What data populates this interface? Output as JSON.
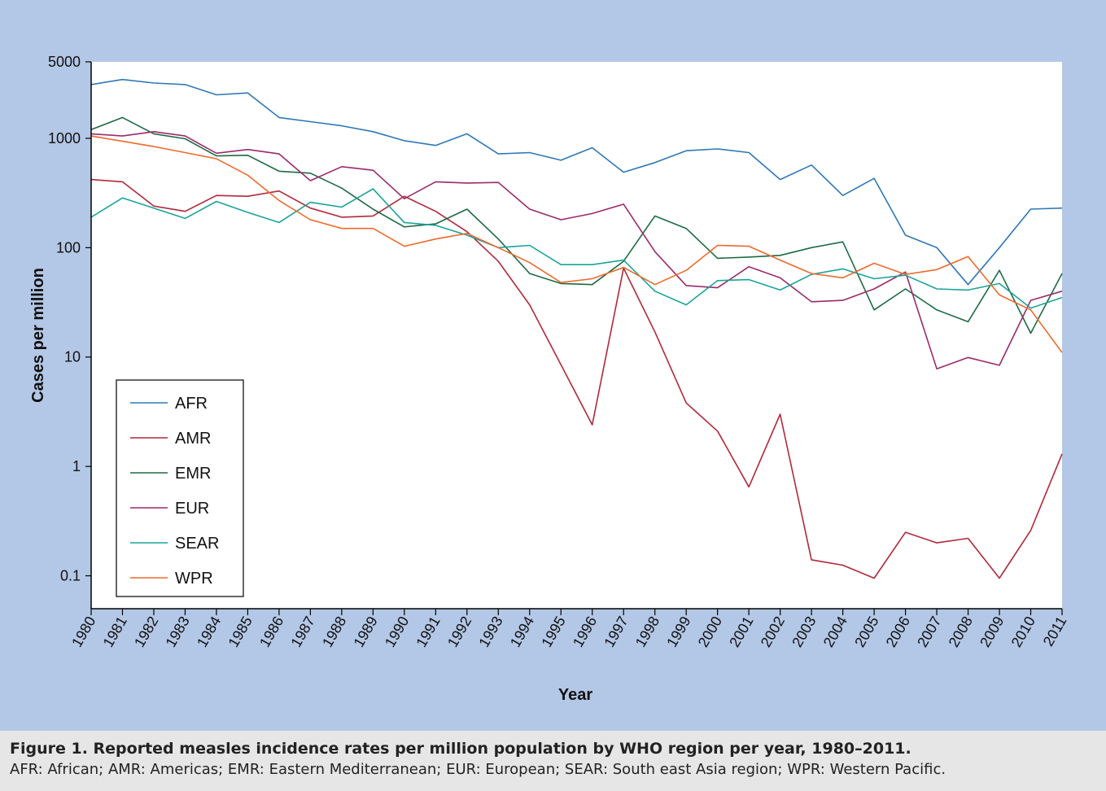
{
  "chart_data": {
    "type": "line",
    "title": "",
    "xlabel": "Year",
    "ylabel": "Cases per million",
    "yscale": "log",
    "ylim": [
      0.05,
      5000
    ],
    "y_ticks": [
      {
        "value": 5000,
        "label": "5000"
      },
      {
        "value": 1000,
        "label": "1000"
      },
      {
        "value": 100,
        "label": "100"
      },
      {
        "value": 10,
        "label": "10"
      },
      {
        "value": 1,
        "label": "1"
      },
      {
        "value": 0.1,
        "label": "0.1"
      }
    ],
    "x": [
      1980,
      1981,
      1982,
      1983,
      1984,
      1985,
      1986,
      1987,
      1988,
      1989,
      1990,
      1991,
      1992,
      1993,
      1994,
      1995,
      1996,
      1997,
      1998,
      1999,
      2000,
      2001,
      2002,
      2003,
      2004,
      2005,
      2006,
      2007,
      2008,
      2009,
      2010,
      2011
    ],
    "grid": false,
    "legend_position": "bottom-left",
    "series": [
      {
        "name": "AFR",
        "color": "#2e78b7",
        "values": [
          3100,
          3450,
          3200,
          3100,
          2500,
          2600,
          1550,
          1420,
          1300,
          1150,
          950,
          860,
          1100,
          720,
          740,
          630,
          820,
          490,
          600,
          770,
          800,
          740,
          420,
          570,
          300,
          430,
          130,
          100,
          46,
          100,
          225,
          230
        ]
      },
      {
        "name": "AMR",
        "color": "#b2283a",
        "values": [
          420,
          400,
          240,
          215,
          300,
          295,
          330,
          230,
          190,
          195,
          295,
          215,
          140,
          75,
          30,
          8.5,
          2.4,
          65,
          17,
          3.8,
          2.1,
          0.65,
          3.0,
          0.14,
          0.125,
          0.095,
          0.25,
          0.2,
          0.22,
          0.095,
          0.26,
          1.3
        ]
      },
      {
        "name": "EMR",
        "color": "#1c6b44",
        "values": [
          1200,
          1550,
          1100,
          990,
          690,
          700,
          500,
          480,
          350,
          225,
          155,
          165,
          225,
          120,
          58,
          47,
          46,
          75,
          195,
          150,
          80,
          82,
          85,
          100,
          113,
          27,
          42,
          27,
          21,
          62,
          16.5,
          58
        ]
      },
      {
        "name": "EUR",
        "color": "#9b2a6b",
        "values": [
          1100,
          1050,
          1150,
          1050,
          730,
          790,
          720,
          410,
          550,
          510,
          280,
          400,
          390,
          395,
          225,
          180,
          205,
          250,
          92,
          45,
          43,
          67,
          53,
          32,
          33,
          42,
          60,
          7.8,
          9.9,
          8.4,
          33,
          40
        ]
      },
      {
        "name": "SEAR",
        "color": "#1aa39a",
        "values": [
          190,
          285,
          230,
          185,
          265,
          210,
          170,
          260,
          235,
          345,
          170,
          160,
          130,
          100,
          105,
          70,
          70,
          77,
          40,
          30,
          50,
          51,
          41,
          57,
          64,
          52,
          56,
          42,
          41,
          47,
          28,
          35
        ]
      },
      {
        "name": "WPR",
        "color": "#ee6a2c",
        "values": [
          1050,
          940,
          840,
          740,
          650,
          460,
          270,
          180,
          150,
          150,
          103,
          120,
          135,
          100,
          73,
          48,
          52,
          66,
          46,
          62,
          105,
          103,
          77,
          58,
          53,
          72,
          57,
          63,
          83,
          37,
          27,
          11
        ]
      }
    ]
  },
  "caption": {
    "title": "Figure 1. Reported measles incidence rates per million population by WHO region per year, 1980–2011.",
    "note": "AFR: African; AMR: Americas; EMR: Eastern Mediterranean; EUR: European; SEAR: South east Asia region; WPR: Western Pacific."
  }
}
